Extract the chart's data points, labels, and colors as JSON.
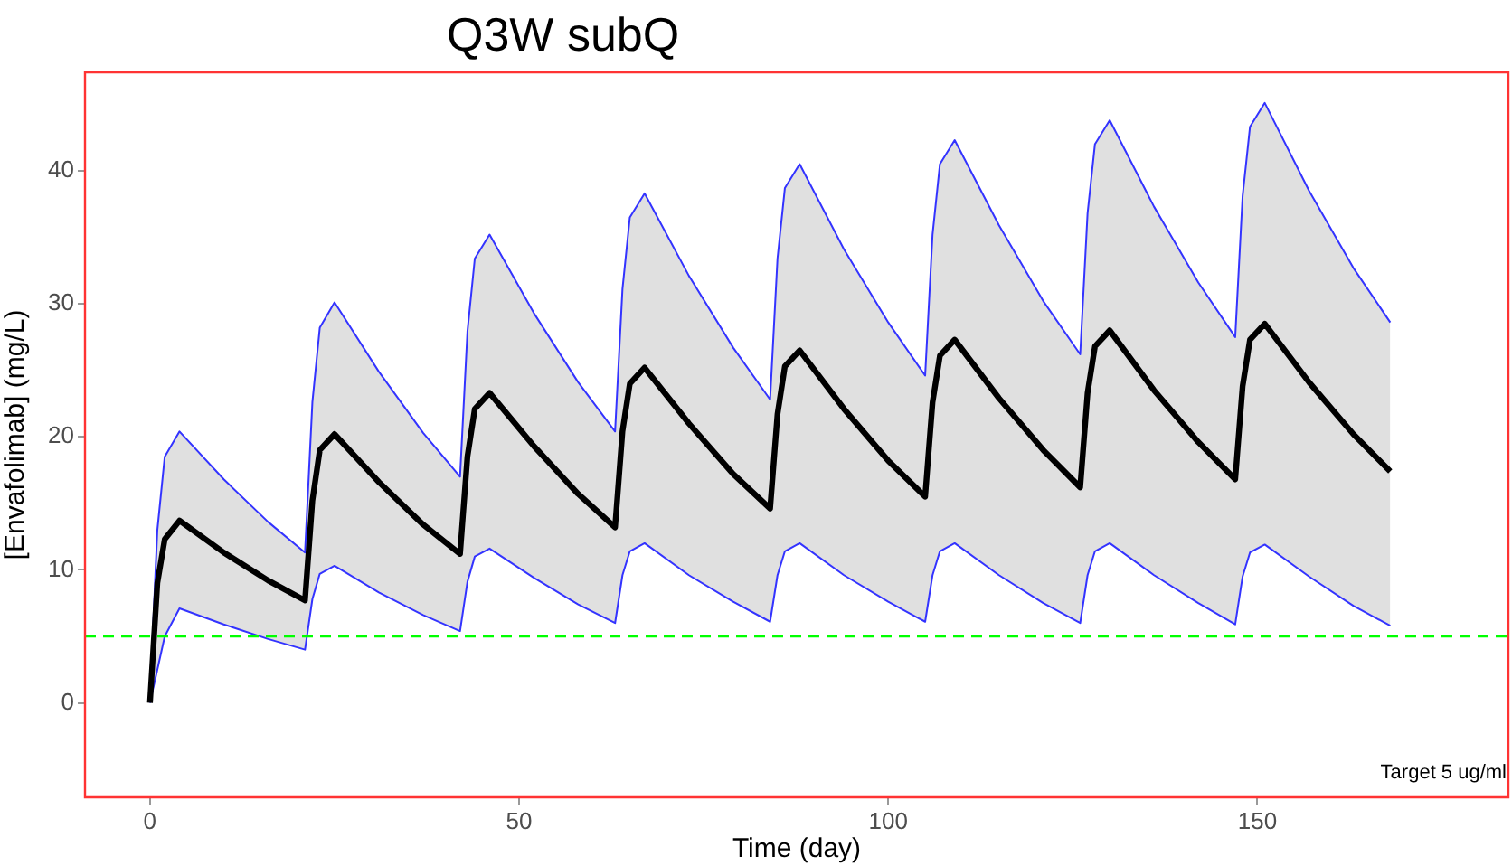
{
  "chart_data": {
    "type": "line",
    "title": "Q3W subQ",
    "xlabel": "Time (day)",
    "ylabel": "[Envafolimab] (mg/L)",
    "x": [
      0,
      1,
      2,
      4,
      10,
      16,
      21,
      22,
      23,
      25,
      31,
      37,
      42,
      43,
      44,
      46,
      52,
      58,
      63,
      64,
      65,
      67,
      73,
      79,
      84,
      85,
      86,
      88,
      94,
      100,
      105,
      106,
      107,
      109,
      115,
      121,
      126,
      127,
      128,
      130,
      136,
      142,
      147,
      148,
      149,
      151,
      157,
      163,
      168
    ],
    "series": [
      {
        "color": "#000000",
        "values": [
          0,
          9.0,
          12.3,
          13.7,
          11.3,
          9.2,
          7.7,
          15.2,
          19.0,
          20.2,
          16.6,
          13.4,
          11.2,
          18.5,
          22.1,
          23.3,
          19.3,
          15.7,
          13.2,
          20.4,
          24.0,
          25.2,
          21.0,
          17.2,
          14.6,
          21.7,
          25.3,
          26.5,
          22.1,
          18.2,
          15.5,
          22.6,
          26.1,
          27.3,
          22.9,
          19.0,
          16.2,
          23.3,
          26.8,
          28.0,
          23.5,
          19.6,
          16.8,
          23.8,
          27.3,
          28.5,
          24.1,
          20.2,
          17.4
        ],
        "upper": [
          0.5,
          13.0,
          18.5,
          20.4,
          16.8,
          13.6,
          11.3,
          22.6,
          28.2,
          30.1,
          24.9,
          20.3,
          17.0,
          27.9,
          33.4,
          35.2,
          29.3,
          24.1,
          20.4,
          31.1,
          36.5,
          38.3,
          32.1,
          26.7,
          22.8,
          33.4,
          38.7,
          40.5,
          34.1,
          28.6,
          24.6,
          35.2,
          40.5,
          42.3,
          35.9,
          30.2,
          26.2,
          36.8,
          42.0,
          43.8,
          37.3,
          31.6,
          27.5,
          38.1,
          43.3,
          45.1,
          38.5,
          32.7,
          28.6
        ],
        "lower": [
          0,
          2.5,
          5.0,
          7.1,
          5.9,
          4.8,
          4.0,
          7.8,
          9.7,
          10.3,
          8.3,
          6.6,
          5.4,
          9.1,
          11.0,
          11.6,
          9.4,
          7.4,
          6.0,
          9.6,
          11.4,
          12.0,
          9.6,
          7.6,
          6.1,
          9.6,
          11.4,
          12.0,
          9.6,
          7.6,
          6.1,
          9.6,
          11.4,
          12.0,
          9.6,
          7.5,
          6.0,
          9.6,
          11.4,
          12.0,
          9.6,
          7.5,
          5.9,
          9.5,
          11.3,
          11.9,
          9.5,
          7.3,
          5.8
        ]
      },
      {
        "color": "#3333ff",
        "values": [
          0.5,
          13.0,
          18.5,
          20.4,
          16.8,
          13.6,
          11.3,
          22.6,
          28.2,
          30.1,
          24.9,
          20.3,
          17.0,
          27.9,
          33.4,
          35.2,
          29.3,
          24.1,
          20.4,
          31.1,
          36.5,
          38.3,
          32.1,
          26.7,
          22.8,
          33.4,
          38.7,
          40.5,
          34.1,
          28.6,
          24.6,
          35.2,
          40.5,
          42.3,
          35.9,
          30.2,
          26.2,
          36.8,
          42.0,
          43.8,
          37.3,
          31.6,
          27.5,
          38.1,
          43.3,
          45.1,
          38.5,
          32.7,
          28.6
        ]
      },
      {
        "color": "#3333ff",
        "values": [
          0,
          2.5,
          5.0,
          7.1,
          5.9,
          4.8,
          4.0,
          7.8,
          9.7,
          10.3,
          8.3,
          6.6,
          5.4,
          9.1,
          11.0,
          11.6,
          9.4,
          7.4,
          6.0,
          9.6,
          11.4,
          12.0,
          9.6,
          7.6,
          6.1,
          9.6,
          11.4,
          12.0,
          9.6,
          7.6,
          6.1,
          9.6,
          11.4,
          12.0,
          9.6,
          7.5,
          6.0,
          9.6,
          11.4,
          12.0,
          9.6,
          7.5,
          5.9,
          9.5,
          11.3,
          11.9,
          9.5,
          7.3,
          5.8
        ]
      }
    ],
    "annotations": [
      "Target 5 ug/ml"
    ],
    "xlim": [
      -8.8,
      184
    ],
    "ylim": [
      -7.1,
      47.4
    ],
    "xticks": [
      0,
      50,
      100,
      150
    ],
    "yticks": [
      0,
      10,
      20,
      30,
      40
    ],
    "ref_lines": [
      {
        "axis": "y",
        "value": 5,
        "color": "#00ff00",
        "line_style": "dashed"
      }
    ],
    "grid": false,
    "legend": false,
    "marker": "none",
    "line_style": "solid"
  }
}
